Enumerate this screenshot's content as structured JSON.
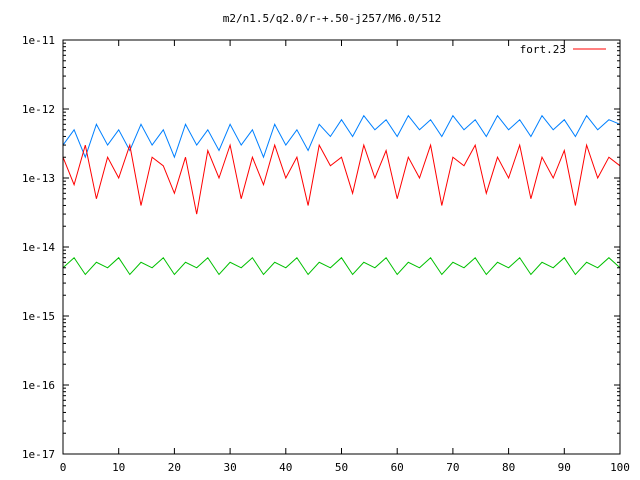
{
  "chart_data": {
    "type": "line",
    "title": "m2/n1.5/q2.0/r-+.50-j257/M6.0/512",
    "xlabel": "",
    "ylabel": "",
    "xlim": [
      0,
      100
    ],
    "ylim": [
      1e-17,
      1e-11
    ],
    "y_scale": "log",
    "x_ticks": [
      0,
      10,
      20,
      30,
      40,
      50,
      60,
      70,
      80,
      90,
      100
    ],
    "x_tick_labels": [
      "0",
      "10",
      "20",
      "30",
      "40",
      "50",
      "60",
      "70",
      "80",
      "90",
      "100"
    ],
    "y_ticks": [
      1e-17,
      1e-16,
      1e-15,
      1e-14,
      1e-13,
      1e-12,
      1e-11
    ],
    "y_tick_labels": [
      "1e-17",
      "1e-16",
      "1e-15",
      "1e-14",
      "1e-13",
      "1e-12",
      "1e-11"
    ],
    "grid": false,
    "legend": {
      "position": "top-right",
      "entries": [
        {
          "label": "fort.23",
          "color": "#ff0000"
        }
      ]
    },
    "series": [
      {
        "name": "fort.23",
        "color": "#ff0000",
        "x": [
          0,
          2,
          4,
          6,
          8,
          10,
          12,
          14,
          16,
          18,
          20,
          22,
          24,
          26,
          28,
          30,
          32,
          34,
          36,
          38,
          40,
          42,
          44,
          46,
          48,
          50,
          52,
          54,
          56,
          58,
          60,
          62,
          64,
          66,
          68,
          70,
          72,
          74,
          76,
          78,
          80,
          82,
          84,
          86,
          88,
          90,
          92,
          94,
          96,
          98,
          100
        ],
        "y": [
          2e-13,
          8e-14,
          3e-13,
          5e-14,
          2e-13,
          1e-13,
          3e-13,
          4e-14,
          2e-13,
          1.5e-13,
          6e-14,
          2e-13,
          3e-14,
          2.5e-13,
          1e-13,
          3e-13,
          5e-14,
          2e-13,
          8e-14,
          3e-13,
          1e-13,
          2e-13,
          4e-14,
          3e-13,
          1.5e-13,
          2e-13,
          6e-14,
          3e-13,
          1e-13,
          2.5e-13,
          5e-14,
          2e-13,
          1e-13,
          3e-13,
          4e-14,
          2e-13,
          1.5e-13,
          3e-13,
          6e-14,
          2e-13,
          1e-13,
          3e-13,
          5e-14,
          2e-13,
          1e-13,
          2.5e-13,
          4e-14,
          3e-13,
          1e-13,
          2e-13,
          1.5e-13
        ]
      },
      {
        "name": "",
        "color": "#0080ff",
        "x": [
          0,
          2,
          4,
          6,
          8,
          10,
          12,
          14,
          16,
          18,
          20,
          22,
          24,
          26,
          28,
          30,
          32,
          34,
          36,
          38,
          40,
          42,
          44,
          46,
          48,
          50,
          52,
          54,
          56,
          58,
          60,
          62,
          64,
          66,
          68,
          70,
          72,
          74,
          76,
          78,
          80,
          82,
          84,
          86,
          88,
          90,
          92,
          94,
          96,
          98,
          100
        ],
        "y": [
          3e-13,
          5e-13,
          2e-13,
          6e-13,
          3e-13,
          5e-13,
          2.5e-13,
          6e-13,
          3e-13,
          5e-13,
          2e-13,
          6e-13,
          3e-13,
          5e-13,
          2.5e-13,
          6e-13,
          3e-13,
          5e-13,
          2e-13,
          6e-13,
          3e-13,
          5e-13,
          2.5e-13,
          6e-13,
          4e-13,
          7e-13,
          4e-13,
          8e-13,
          5e-13,
          7e-13,
          4e-13,
          8e-13,
          5e-13,
          7e-13,
          4e-13,
          8e-13,
          5e-13,
          7e-13,
          4e-13,
          8e-13,
          5e-13,
          7e-13,
          4e-13,
          8e-13,
          5e-13,
          7e-13,
          4e-13,
          8e-13,
          5e-13,
          7e-13,
          6e-13
        ]
      },
      {
        "name": "",
        "color": "#00c000",
        "x": [
          0,
          2,
          4,
          6,
          8,
          10,
          12,
          14,
          16,
          18,
          20,
          22,
          24,
          26,
          28,
          30,
          32,
          34,
          36,
          38,
          40,
          42,
          44,
          46,
          48,
          50,
          52,
          54,
          56,
          58,
          60,
          62,
          64,
          66,
          68,
          70,
          72,
          74,
          76,
          78,
          80,
          82,
          84,
          86,
          88,
          90,
          92,
          94,
          96,
          98,
          100
        ],
        "y": [
          5e-15,
          7e-15,
          4e-15,
          6e-15,
          5e-15,
          7e-15,
          4e-15,
          6e-15,
          5e-15,
          7e-15,
          4e-15,
          6e-15,
          5e-15,
          7e-15,
          4e-15,
          6e-15,
          5e-15,
          7e-15,
          4e-15,
          6e-15,
          5e-15,
          7e-15,
          4e-15,
          6e-15,
          5e-15,
          7e-15,
          4e-15,
          6e-15,
          5e-15,
          7e-15,
          4e-15,
          6e-15,
          5e-15,
          7e-15,
          4e-15,
          6e-15,
          5e-15,
          7e-15,
          4e-15,
          6e-15,
          5e-15,
          7e-15,
          4e-15,
          6e-15,
          5e-15,
          7e-15,
          4e-15,
          6e-15,
          5e-15,
          7e-15,
          5e-15
        ]
      }
    ]
  }
}
